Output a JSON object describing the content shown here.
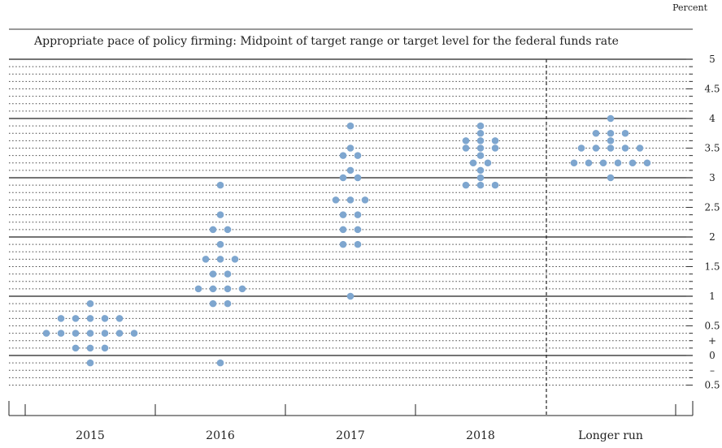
{
  "chart_data": {
    "type": "scatter",
    "title": "Appropriate pace of policy firming: Midpoint of target range or target level for the federal funds rate",
    "unit_label": "Percent",
    "categories": [
      "2015",
      "2016",
      "2017",
      "2018",
      "Longer run"
    ],
    "y_ticks": [
      "5",
      "4.5",
      "4",
      "3.5",
      "3",
      "2.5",
      "2",
      "1.5",
      "1",
      "0.5",
      "+",
      "0",
      "–",
      "0.5"
    ],
    "ylim": [
      -1.0,
      5.0
    ],
    "grid": "solid at integers, dotted at eighths",
    "dot_color": "#7ea6cf",
    "series": [
      {
        "category": "2015",
        "points": [
          {
            "value": 0.875,
            "count": 1
          },
          {
            "value": 0.625,
            "count": 5
          },
          {
            "value": 0.375,
            "count": 7
          },
          {
            "value": 0.125,
            "count": 3
          },
          {
            "value": -0.125,
            "count": 1
          }
        ]
      },
      {
        "category": "2016",
        "points": [
          {
            "value": 2.875,
            "count": 1
          },
          {
            "value": 2.375,
            "count": 1
          },
          {
            "value": 2.125,
            "count": 2
          },
          {
            "value": 1.875,
            "count": 1
          },
          {
            "value": 1.625,
            "count": 3
          },
          {
            "value": 1.375,
            "count": 2
          },
          {
            "value": 1.125,
            "count": 4
          },
          {
            "value": 0.875,
            "count": 2
          },
          {
            "value": -0.125,
            "count": 1
          }
        ]
      },
      {
        "category": "2017",
        "points": [
          {
            "value": 3.875,
            "count": 1
          },
          {
            "value": 3.5,
            "count": 1
          },
          {
            "value": 3.375,
            "count": 2
          },
          {
            "value": 3.125,
            "count": 1
          },
          {
            "value": 3.0,
            "count": 2
          },
          {
            "value": 2.625,
            "count": 3
          },
          {
            "value": 2.375,
            "count": 2
          },
          {
            "value": 2.125,
            "count": 2
          },
          {
            "value": 1.875,
            "count": 2
          },
          {
            "value": 1.0,
            "count": 1
          }
        ]
      },
      {
        "category": "2018",
        "points": [
          {
            "value": 3.875,
            "count": 1
          },
          {
            "value": 3.75,
            "count": 1
          },
          {
            "value": 3.625,
            "count": 3
          },
          {
            "value": 3.5,
            "count": 3
          },
          {
            "value": 3.375,
            "count": 1
          },
          {
            "value": 3.25,
            "count": 2
          },
          {
            "value": 3.125,
            "count": 1
          },
          {
            "value": 3.0,
            "count": 1
          },
          {
            "value": 2.875,
            "count": 3
          }
        ]
      },
      {
        "category": "Longer run",
        "points": [
          {
            "value": 4.0,
            "count": 1
          },
          {
            "value": 3.75,
            "count": 3
          },
          {
            "value": 3.625,
            "count": 1
          },
          {
            "value": 3.5,
            "count": 5
          },
          {
            "value": 3.25,
            "count": 6
          },
          {
            "value": 3.0,
            "count": 1
          }
        ]
      }
    ]
  }
}
